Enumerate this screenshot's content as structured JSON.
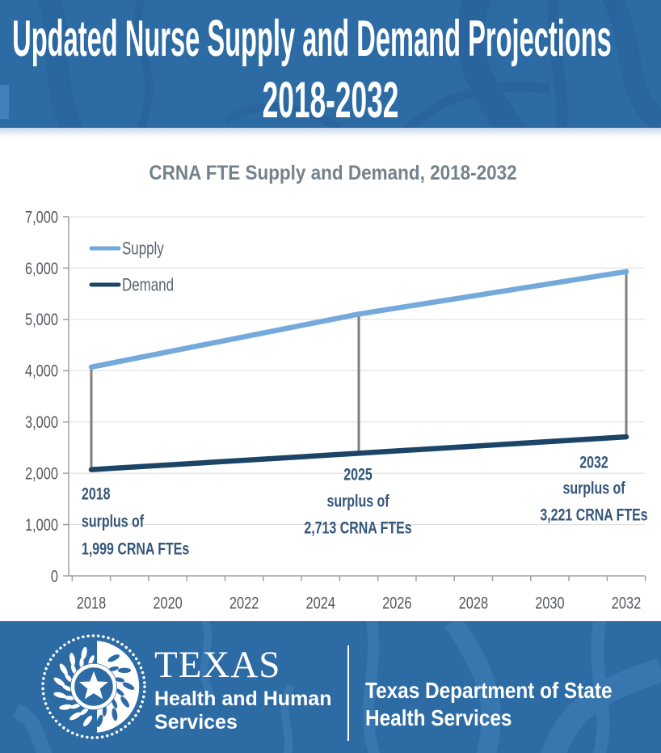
{
  "header": {
    "title_line1": "Updated Nurse Supply and Demand Projections",
    "title_line2": "2018-2032"
  },
  "chart_data": {
    "type": "line",
    "title": "CRNA FTE Supply and Demand, 2018-2032",
    "x": [
      2018,
      2025,
      2032
    ],
    "series": [
      {
        "name": "Supply",
        "values": [
          4070,
          5103,
          5931
        ]
      },
      {
        "name": "Demand",
        "values": [
          2071,
          2390,
          2710
        ]
      }
    ],
    "ylim": [
      0,
      7000
    ],
    "ytick_step": 1000,
    "xticks_labeled": [
      2018,
      2020,
      2022,
      2024,
      2026,
      2028,
      2030,
      2032
    ],
    "grid": true,
    "legend_position": "top-left-inside",
    "annotations": [
      {
        "year": 2018,
        "lines": [
          "2018",
          "surplus of",
          "1,999 CRNA FTEs"
        ]
      },
      {
        "year": 2025,
        "lines": [
          "2025",
          "surplus of",
          "2,713 CRNA FTEs"
        ]
      },
      {
        "year": 2032,
        "lines": [
          "2032",
          "surplus of",
          "3,221 CRNA FTEs"
        ]
      }
    ]
  },
  "footer": {
    "org": "TEXAS",
    "org_sub1": "Health and Human",
    "org_sub2": "Services",
    "dept_line1": "Texas Department of State",
    "dept_line2": "Health Services"
  },
  "colors": {
    "band_bg": "#2d6ba4",
    "supply": "#74a9dc",
    "demand": "#1c4466",
    "annotation": "#34567a",
    "axis_text": "#53575c",
    "legend_text": "#5a646e",
    "title_text": "#76828b",
    "grid": "#dcdcdc",
    "axis": "#a0a0a0",
    "connector": "#7f7f7f"
  }
}
